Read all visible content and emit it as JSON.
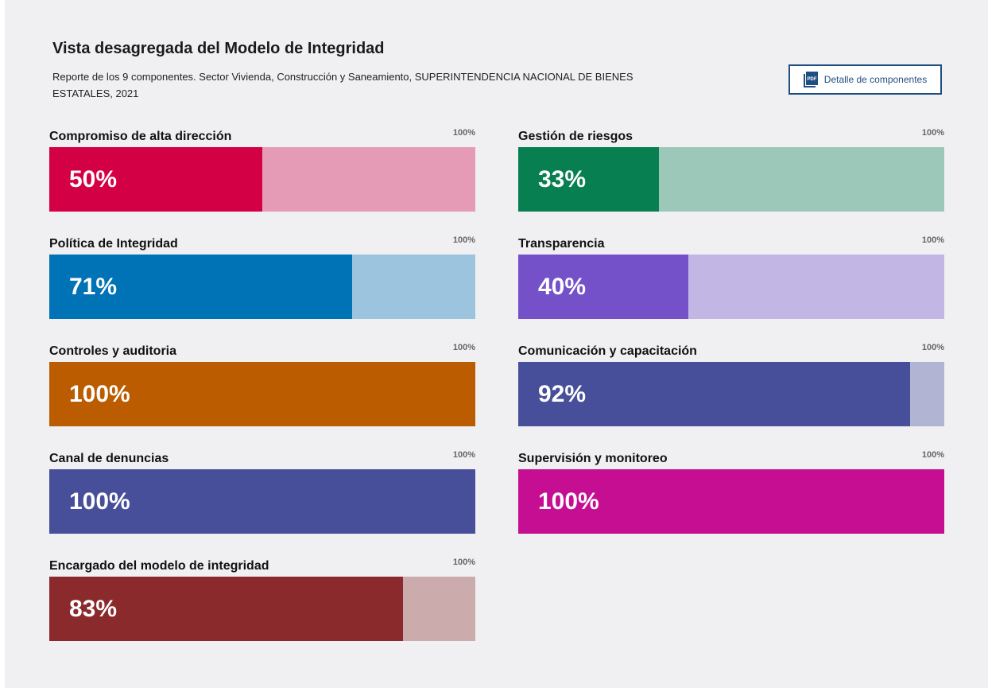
{
  "header": {
    "title": "Vista desagregada del Modelo de Integridad",
    "subtitle": "Reporte de los 9 componentes. Sector Vivienda, Construcción y Saneamiento, SUPERINTENDENCIA NACIONAL DE BIENES ESTATALES, 2021",
    "pdf_button_label": "Detalle de componentes",
    "pdf_icon": "pdf-file-icon"
  },
  "chart_data": {
    "type": "bar",
    "orientation": "horizontal",
    "max_value": 100,
    "max_label": "100%",
    "unit": "%",
    "components": [
      {
        "name": "Compromiso de alta dirección",
        "value": 50,
        "label": "50%",
        "color": "#d30045",
        "track_color": "#e59bb6"
      },
      {
        "name": "Gestión de riesgos",
        "value": 33,
        "label": "33%",
        "color": "#077f50",
        "track_color": "#9cc8b9"
      },
      {
        "name": "Política de Integridad",
        "value": 71,
        "label": "71%",
        "color": "#0073b6",
        "track_color": "#9dc4de"
      },
      {
        "name": "Transparencia",
        "value": 40,
        "label": "40%",
        "color": "#7551c9",
        "track_color": "#c2b6e5"
      },
      {
        "name": "Controles y auditoria",
        "value": 100,
        "label": "100%",
        "color": "#bc5c00",
        "track_color": "#e2bd99"
      },
      {
        "name": "Comunicación y capacitación",
        "value": 92,
        "label": "92%",
        "color": "#484f9a",
        "track_color": "#b2b4d4"
      },
      {
        "name": "Canal de denuncias",
        "value": 100,
        "label": "100%",
        "color": "#484f9a",
        "track_color": "#b2b4d4"
      },
      {
        "name": "Supervisión y monitoreo",
        "value": 100,
        "label": "100%",
        "color": "#c50e92",
        "track_color": "#e89fd2"
      },
      {
        "name": "Encargado del modelo de integridad",
        "value": 83,
        "label": "83%",
        "color": "#8b2a2d",
        "track_color": "#cbabac"
      }
    ]
  }
}
